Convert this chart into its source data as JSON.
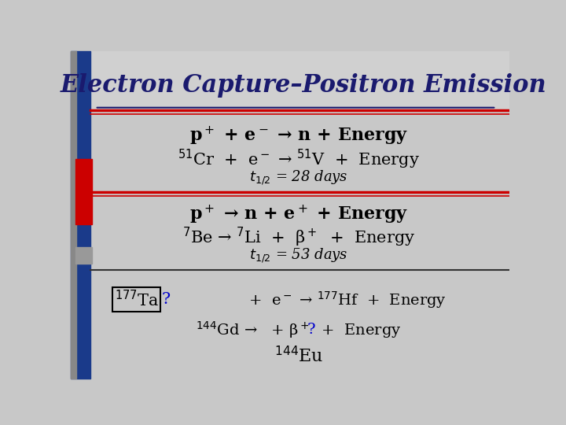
{
  "title": "Electron Capture–Positron Emission",
  "bg_color": "#c8c8c8",
  "sidebar_blue": "#1a3a8a",
  "sidebar_red": "#cc0000",
  "sidebar_gray": "#888888",
  "title_color": "#1a1a6e",
  "line_color_red": "#cc0000",
  "line_color_dark": "#333333",
  "text_color": "#000000",
  "blue_color": "#0000cc",
  "section1_line1": "p$^+$ + e$^-$ → n + Energy",
  "section1_line2": "$^{51}$Cr  +  e$^-$ → $^{51}$V  +  Energy",
  "section1_line3": "$t_{1/2}$ = 28 days",
  "section2_line1": "p$^+$ → n + e$^+$ + Energy",
  "section2_line2": "$^7$Be → $^7$Li  +  β$^+$  +  Energy",
  "section2_line3": "$t_{1/2}$ = 53 days",
  "section3_line1_box": "$^{177}$Ta",
  "section3_line1_rest": "  +  e$^-$ → $^{177}$Hf  +  Energy",
  "section3_line2": "$^{144}$Gd →   + β$^+$  +  Energy",
  "section3_line3": "$^{144}$Eu"
}
